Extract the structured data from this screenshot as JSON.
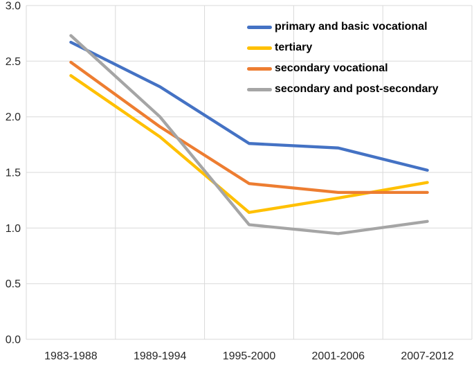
{
  "chart_data": {
    "type": "line",
    "title": "",
    "xlabel": "",
    "ylabel": "",
    "categories": [
      "1983-1988",
      "1989-1994",
      "1995-2000",
      "2001-2006",
      "2007-2012"
    ],
    "series": [
      {
        "name": "primary and basic vocational",
        "color": "#4472C4",
        "values": [
          2.67,
          2.27,
          1.76,
          1.72,
          1.52
        ]
      },
      {
        "name": "tertiary",
        "color": "#FFC000",
        "values": [
          2.37,
          1.82,
          1.14,
          1.27,
          1.41
        ]
      },
      {
        "name": "secondary vocational",
        "color": "#ED7D31",
        "values": [
          2.49,
          1.91,
          1.4,
          1.32,
          1.32
        ]
      },
      {
        "name": "secondary and post-secondary",
        "color": "#A5A5A5",
        "values": [
          2.73,
          2.0,
          1.03,
          0.95,
          1.06
        ]
      }
    ],
    "ylim": [
      0,
      3.0
    ],
    "ytick_step": 0.5,
    "yticks": [
      "0.0",
      "0.5",
      "1.0",
      "1.5",
      "2.0",
      "2.5",
      "3.0"
    ],
    "grid": true,
    "legend_position": "top-right",
    "colors": {
      "grid": "#D9D9D9",
      "axis_text": "#262626",
      "legend_text": "#000000",
      "background": "#FFFFFF"
    }
  }
}
